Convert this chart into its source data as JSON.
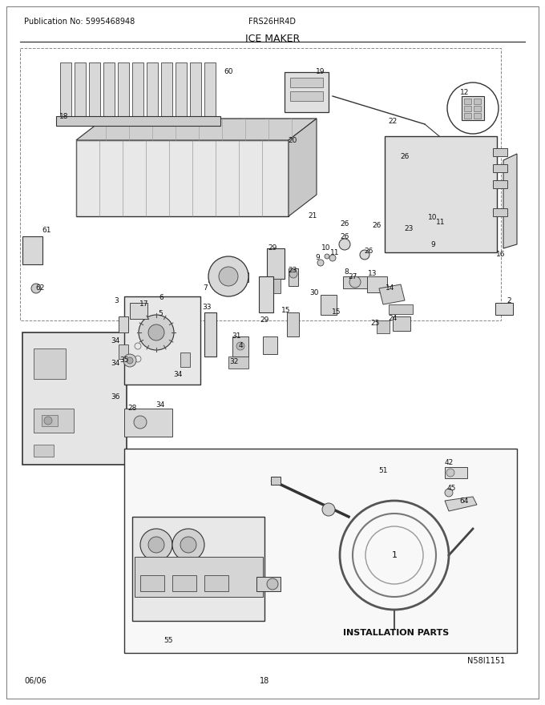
{
  "title": "ICE MAKER",
  "pub_no": "Publication No: 5995468948",
  "model": "FRS26HR4D",
  "date": "06/06",
  "page": "18",
  "diagram_id": "N58I1151",
  "bg_color": "#ffffff",
  "install_box_label": "INSTALLATION PARTS",
  "fig_width": 6.8,
  "fig_height": 8.8,
  "dpi": 100
}
